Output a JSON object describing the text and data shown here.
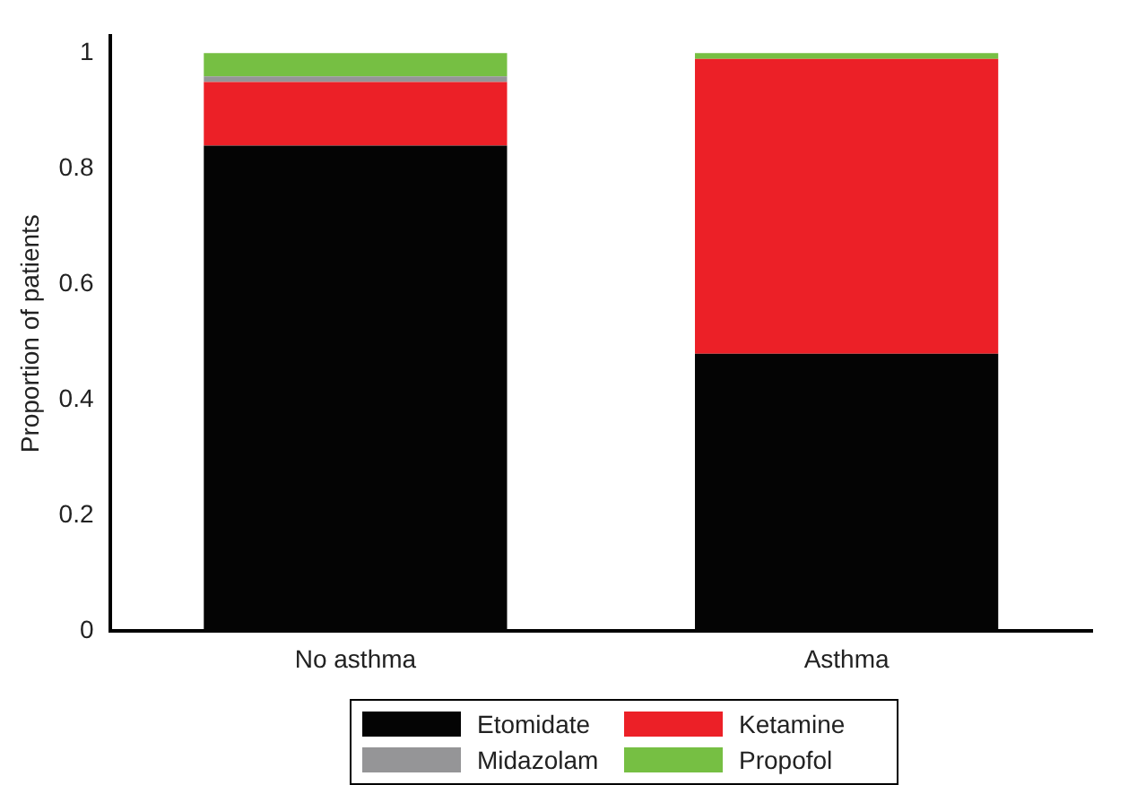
{
  "chart_data": {
    "type": "bar",
    "stacked": true,
    "ylabel": "Proportion of patients",
    "categories": [
      "No asthma",
      "Asthma"
    ],
    "series": [
      {
        "name": "Etomidate",
        "color": "#040404",
        "values": [
          0.84,
          0.48
        ]
      },
      {
        "name": "Ketamine",
        "color": "#ec2027",
        "values": [
          0.11,
          0.51
        ]
      },
      {
        "name": "Midazolam",
        "color": "#959597",
        "values": [
          0.01,
          0
        ]
      },
      {
        "name": "Propofol",
        "color": "#76bf43",
        "values": [
          0.04,
          0.01
        ]
      }
    ],
    "ylim": [
      0,
      1.03
    ],
    "yticks": [
      0,
      0.2,
      0.4,
      0.6,
      0.8,
      1
    ],
    "grid": false,
    "legend": "bottom"
  }
}
